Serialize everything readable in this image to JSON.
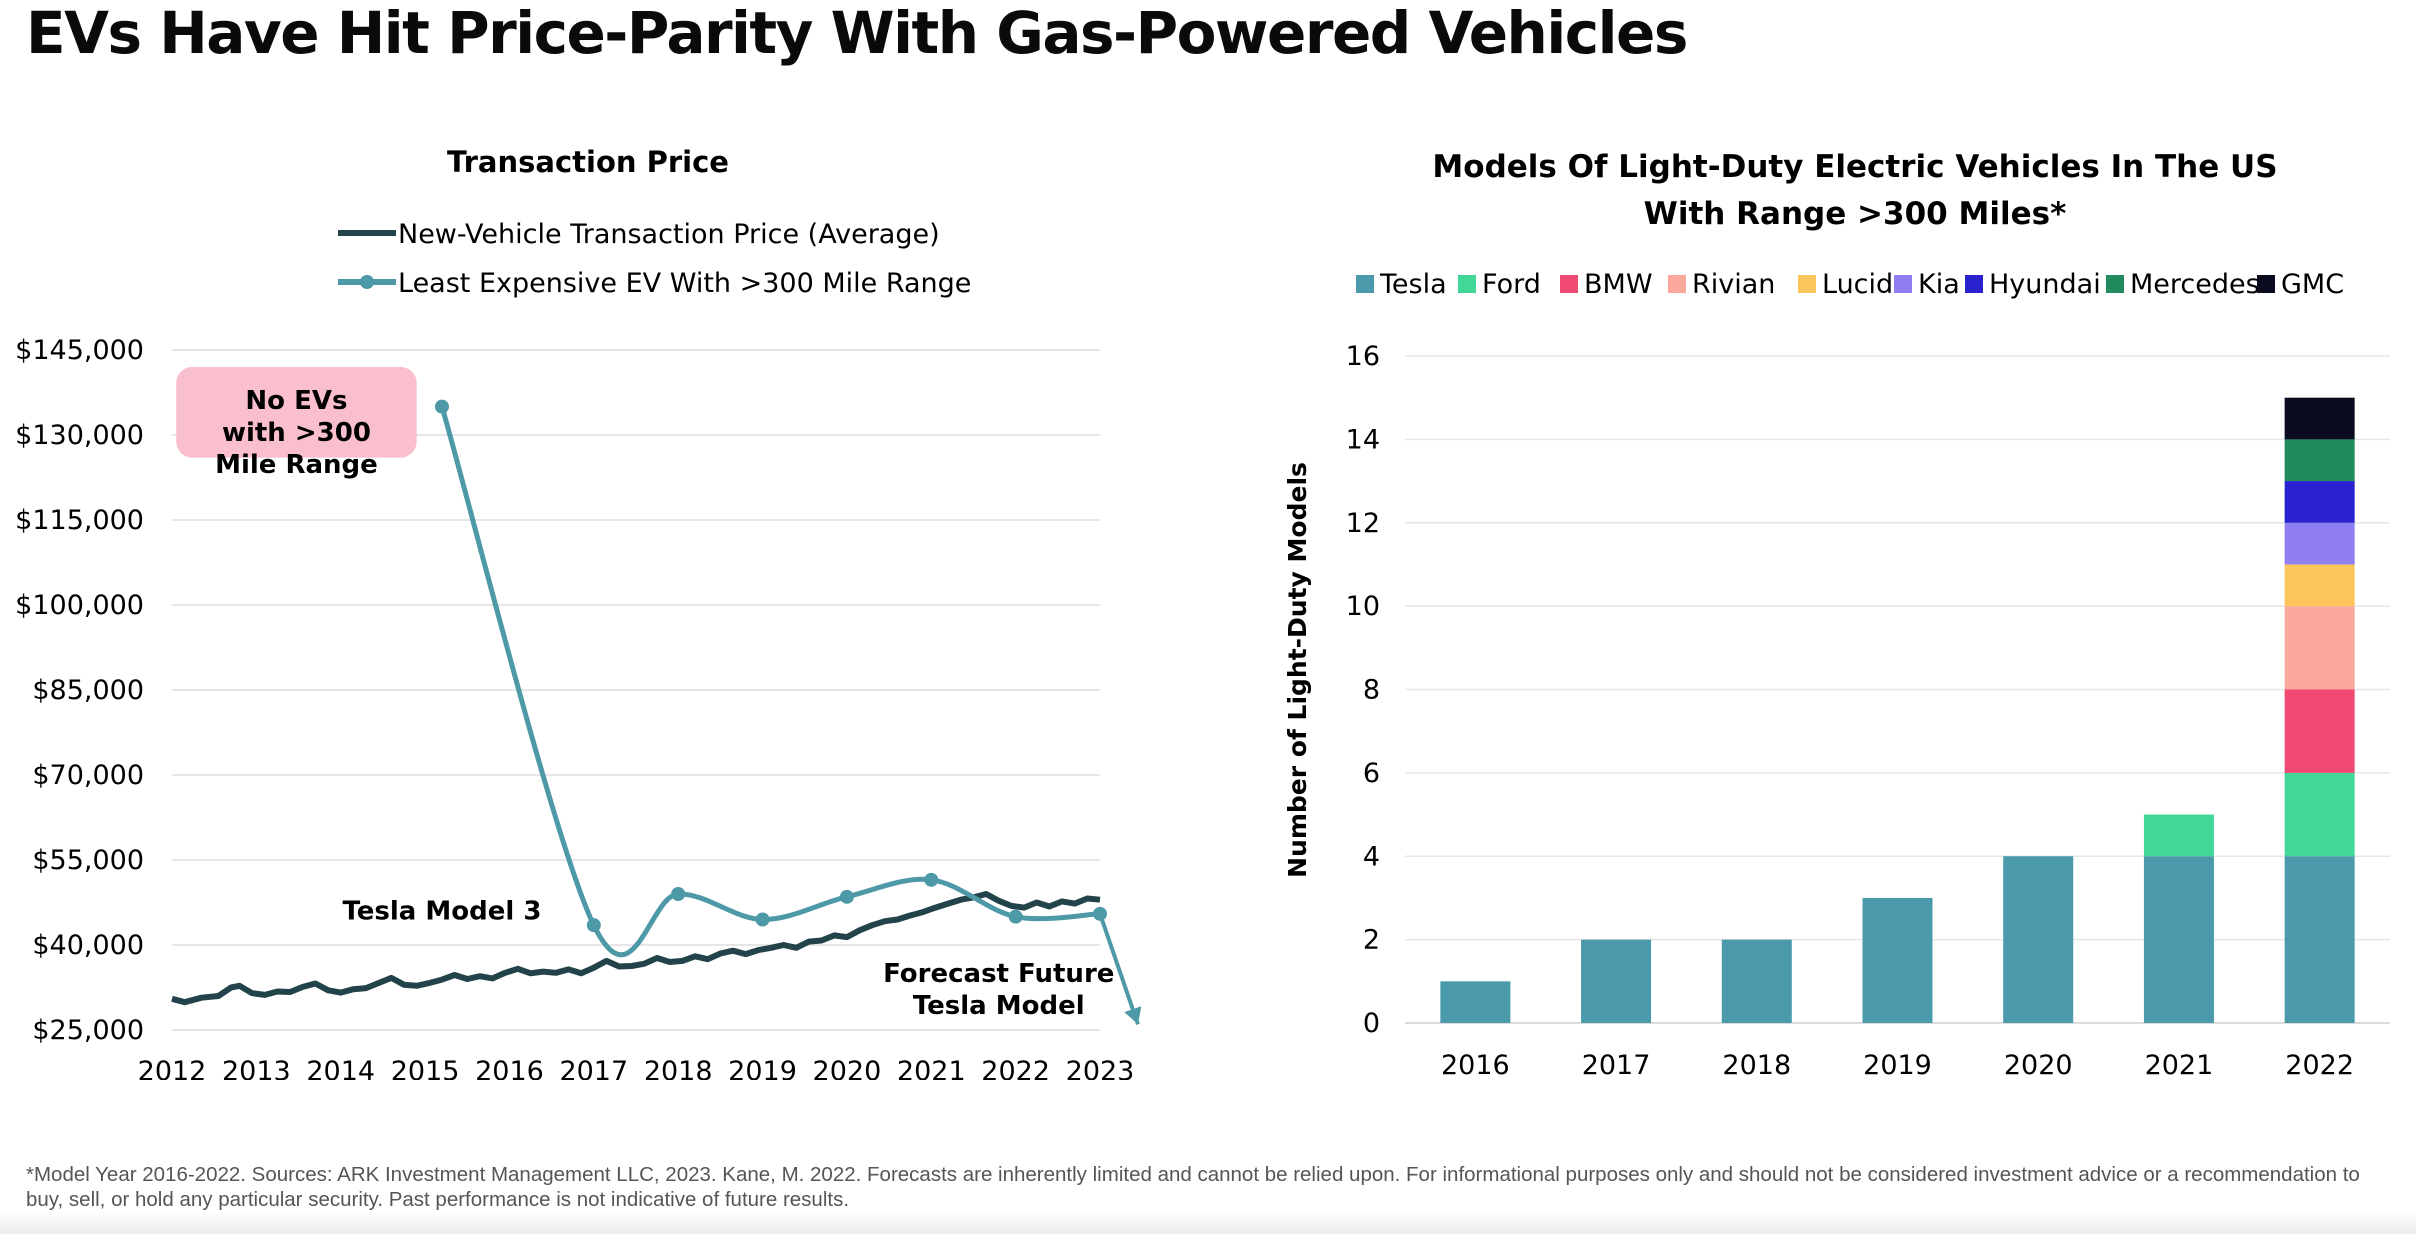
{
  "page": {
    "title": "EVs Have Hit Price-Parity With Gas-Powered Vehicles",
    "footnote": "*Model Year 2016-2022. Sources: ARK Investment Management LLC, 2023. Kane, M. 2022. Forecasts are inherently limited and cannot be relied upon. For informational purposes only and should not be considered investment advice or a recommendation to buy, sell, or hold any particular security. Past performance is not indicative of future results."
  },
  "colors": {
    "transaction_line": "#23434a",
    "ev_line": "#4e99a8",
    "no_ev_box": "#f9bfcd",
    "tesla": "#4a9aab",
    "ford": "#42d796",
    "bmw": "#f04a72",
    "rivian": "#fba89c",
    "lucid": "#fbc55b",
    "kia": "#8f7ef2",
    "hyundai": "#2a22cf",
    "mercedes": "#218a5e",
    "gmc": "#0b0b1f"
  },
  "chart_data": [
    {
      "type": "line",
      "title": "Transaction Price",
      "xlabel": "",
      "ylabel": "",
      "x_ticks": [
        "2012",
        "2013",
        "2014",
        "2015",
        "2016",
        "2017",
        "2018",
        "2019",
        "2020",
        "2021",
        "2022",
        "2023"
      ],
      "xlim": [
        2012,
        2023
      ],
      "y_ticks": [
        "$25,000",
        "$40,000",
        "$55,000",
        "$70,000",
        "$85,000",
        "$100,000",
        "$115,000",
        "$130,000",
        "$145,000"
      ],
      "ylim": [
        25000,
        145000
      ],
      "grid": "horizontal",
      "legend_position": "top",
      "series": [
        {
          "name": "New-Vehicle Transaction Price (Average)",
          "points": [
            [
              2012.0,
              30500
            ],
            [
              2012.15,
              29900
            ],
            [
              2012.35,
              30700
            ],
            [
              2012.55,
              31000
            ],
            [
              2012.7,
              32500
            ],
            [
              2012.8,
              32800
            ],
            [
              2012.95,
              31500
            ],
            [
              2013.1,
              31200
            ],
            [
              2013.25,
              31800
            ],
            [
              2013.4,
              31700
            ],
            [
              2013.55,
              32600
            ],
            [
              2013.7,
              33200
            ],
            [
              2013.85,
              32000
            ],
            [
              2014.0,
              31600
            ],
            [
              2014.15,
              32200
            ],
            [
              2014.3,
              32400
            ],
            [
              2014.45,
              33300
            ],
            [
              2014.6,
              34200
            ],
            [
              2014.75,
              33000
            ],
            [
              2014.9,
              32800
            ],
            [
              2015.05,
              33300
            ],
            [
              2015.2,
              33900
            ],
            [
              2015.35,
              34700
            ],
            [
              2015.5,
              34000
            ],
            [
              2015.65,
              34500
            ],
            [
              2015.8,
              34100
            ],
            [
              2015.95,
              35100
            ],
            [
              2016.1,
              35800
            ],
            [
              2016.25,
              35000
            ],
            [
              2016.4,
              35300
            ],
            [
              2016.55,
              35100
            ],
            [
              2016.7,
              35700
            ],
            [
              2016.85,
              35000
            ],
            [
              2017.0,
              36000
            ],
            [
              2017.15,
              37200
            ],
            [
              2017.3,
              36200
            ],
            [
              2017.45,
              36300
            ],
            [
              2017.6,
              36700
            ],
            [
              2017.75,
              37700
            ],
            [
              2017.9,
              37000
            ],
            [
              2018.05,
              37200
            ],
            [
              2018.2,
              38000
            ],
            [
              2018.35,
              37500
            ],
            [
              2018.5,
              38500
            ],
            [
              2018.65,
              39000
            ],
            [
              2018.8,
              38400
            ],
            [
              2018.95,
              39100
            ],
            [
              2019.1,
              39500
            ],
            [
              2019.25,
              40000
            ],
            [
              2019.4,
              39500
            ],
            [
              2019.55,
              40600
            ],
            [
              2019.7,
              40800
            ],
            [
              2019.85,
              41700
            ],
            [
              2020.0,
              41400
            ],
            [
              2020.15,
              42600
            ],
            [
              2020.3,
              43500
            ],
            [
              2020.45,
              44200
            ],
            [
              2020.6,
              44500
            ],
            [
              2020.75,
              45200
            ],
            [
              2020.9,
              45800
            ],
            [
              2021.05,
              46600
            ],
            [
              2021.2,
              47300
            ],
            [
              2021.35,
              48000
            ],
            [
              2021.5,
              48400
            ],
            [
              2021.65,
              49000
            ],
            [
              2021.8,
              47800
            ],
            [
              2021.95,
              46900
            ],
            [
              2022.1,
              46600
            ],
            [
              2022.25,
              47500
            ],
            [
              2022.4,
              46800
            ],
            [
              2022.55,
              47700
            ],
            [
              2022.7,
              47300
            ],
            [
              2022.85,
              48200
            ],
            [
              2023.0,
              48000
            ]
          ]
        },
        {
          "name": "Least Expensive EV With >300 Mile Range",
          "points": [
            [
              2015.2,
              135000
            ],
            [
              2017.0,
              43500
            ],
            [
              2018.0,
              49000
            ],
            [
              2019.0,
              44500
            ],
            [
              2020.0,
              48500
            ],
            [
              2021.0,
              51500
            ],
            [
              2022.0,
              45000
            ],
            [
              2023.0,
              45500
            ]
          ],
          "forecast_end": [
            2023.45,
            26000
          ]
        }
      ],
      "annotations": {
        "no_ev_box": [
          "No EVs",
          "with >300",
          "Mile Range"
        ],
        "tesla_model_3": "Tesla Model 3",
        "forecast": [
          "Forecast Future",
          "Tesla Model"
        ]
      }
    },
    {
      "type": "bar",
      "stacked": true,
      "title": [
        "Models Of Light-Duty Electric Vehicles In The US",
        "With Range >300 Miles*"
      ],
      "xlabel": "",
      "ylabel": "Number of Light-Duty Models",
      "categories": [
        "2016",
        "2017",
        "2018",
        "2019",
        "2020",
        "2021",
        "2022"
      ],
      "ylim": [
        0,
        16
      ],
      "y_ticks": [
        "0",
        "2",
        "4",
        "6",
        "8",
        "10",
        "12",
        "14",
        "16"
      ],
      "grid": "horizontal",
      "legend_position": "top",
      "series": [
        {
          "name": "Tesla",
          "color_key": "tesla",
          "values": [
            1,
            2,
            2,
            3,
            4,
            4,
            4
          ]
        },
        {
          "name": "Ford",
          "color_key": "ford",
          "values": [
            0,
            0,
            0,
            0,
            0,
            1,
            2
          ]
        },
        {
          "name": "BMW",
          "color_key": "bmw",
          "values": [
            0,
            0,
            0,
            0,
            0,
            0,
            2
          ]
        },
        {
          "name": "Rivian",
          "color_key": "rivian",
          "values": [
            0,
            0,
            0,
            0,
            0,
            0,
            2
          ]
        },
        {
          "name": "Lucid",
          "color_key": "lucid",
          "values": [
            0,
            0,
            0,
            0,
            0,
            0,
            1
          ]
        },
        {
          "name": "Kia",
          "color_key": "kia",
          "values": [
            0,
            0,
            0,
            0,
            0,
            0,
            1
          ]
        },
        {
          "name": "Hyundai",
          "color_key": "hyundai",
          "values": [
            0,
            0,
            0,
            0,
            0,
            0,
            1
          ]
        },
        {
          "name": "Mercedes",
          "color_key": "mercedes",
          "values": [
            0,
            0,
            0,
            0,
            0,
            0,
            1
          ]
        },
        {
          "name": "GMC",
          "color_key": "gmc",
          "values": [
            0,
            0,
            0,
            0,
            0,
            0,
            1
          ]
        }
      ]
    }
  ]
}
